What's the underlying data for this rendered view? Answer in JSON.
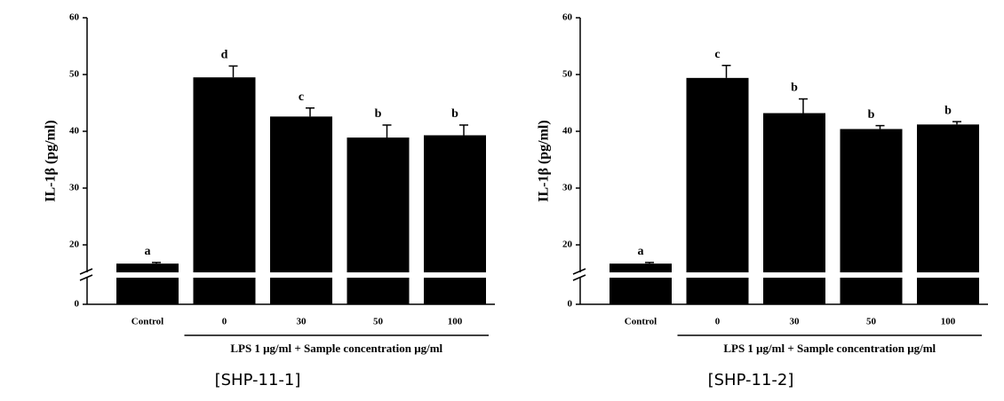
{
  "chart_data": [
    {
      "type": "bar",
      "y_label": "IL-1β (pg/ml)",
      "x_label": "LPS 1 μg/ml + Sample concentration μg/ml",
      "caption": "[SHP-11-1]",
      "categories": [
        "Control",
        "0",
        "30",
        "50",
        "100"
      ],
      "values": [
        16.7,
        49.5,
        42.6,
        38.9,
        39.3
      ],
      "errors": [
        0.2,
        2.0,
        1.5,
        2.2,
        1.8
      ],
      "annotations": [
        "a",
        "d",
        "c",
        "b",
        "b"
      ],
      "color": "#000000",
      "ylim": [
        0,
        60
      ],
      "yticks": [
        0,
        20,
        30,
        40,
        50,
        60
      ],
      "axis_break": true
    },
    {
      "type": "bar",
      "y_label": "IL-1β (pg/ml)",
      "x_label": "LPS 1 μg/ml + Sample concentration μg/ml",
      "caption": "[SHP-11-2]",
      "categories": [
        "Control",
        "0",
        "30",
        "50",
        "100"
      ],
      "values": [
        16.7,
        49.4,
        43.2,
        40.4,
        41.2
      ],
      "errors": [
        0.2,
        2.2,
        2.5,
        0.6,
        0.5
      ],
      "annotations": [
        "a",
        "c",
        "b",
        "b",
        "b"
      ],
      "color": "#000000",
      "ylim": [
        0,
        60
      ],
      "yticks": [
        0,
        20,
        30,
        40,
        50,
        60
      ],
      "axis_break": true
    }
  ]
}
